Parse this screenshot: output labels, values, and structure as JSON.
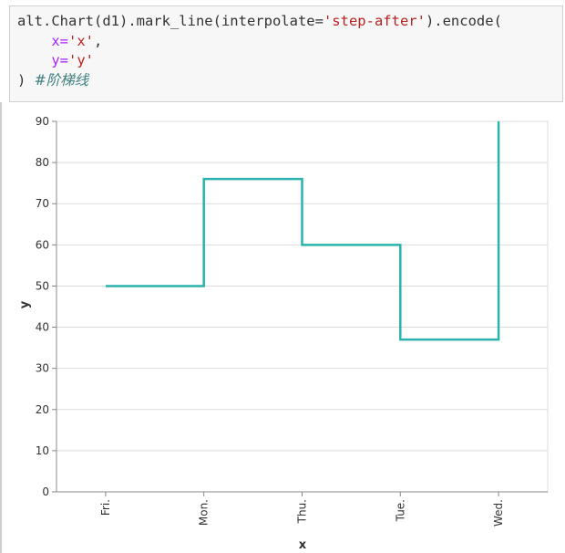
{
  "code": {
    "line1_a": "alt.Chart(d1).mark_line(interpolate=",
    "line1_str": "'step-after'",
    "line1_b": ").encode(",
    "line2_kw": "x=",
    "line2_str": "'x'",
    "line2_b": ",",
    "line3_kw": "y=",
    "line3_str": "'y'",
    "line4_a": ")",
    "line4_comment": "#阶梯线"
  },
  "colors": {
    "line": "#2ab2ac",
    "grid": "#dddddd",
    "axis": "#888888"
  },
  "chart_data": {
    "type": "line",
    "interpolate": "step-after",
    "categories": [
      "Fri.",
      "Mon.",
      "Thu.",
      "Tue.",
      "Wed."
    ],
    "values": [
      50,
      76,
      60,
      37,
      90
    ],
    "xlabel": "x",
    "ylabel": "y",
    "ylim": [
      0,
      90
    ],
    "yticks": [
      0,
      10,
      20,
      30,
      40,
      50,
      60,
      70,
      80,
      90
    ],
    "grid": true
  }
}
